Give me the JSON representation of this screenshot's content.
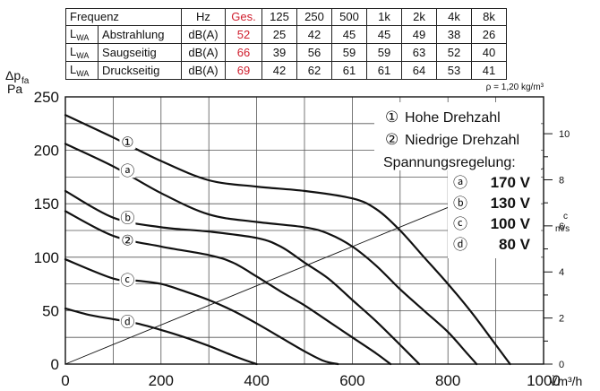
{
  "table": {
    "header": [
      "Frequenz",
      "Hz",
      "Ges.",
      "125",
      "250",
      "500",
      "1k",
      "2k",
      "4k",
      "8k"
    ],
    "rows": [
      {
        "sym": "L",
        "sub": "WA",
        "label": "Abstrahlung",
        "unit": "dB(A)",
        "total": "52",
        "values": [
          "25",
          "42",
          "45",
          "45",
          "49",
          "38",
          "26"
        ]
      },
      {
        "sym": "L",
        "sub": "WA",
        "label": "Saugseitig",
        "unit": "dB(A)",
        "total": "66",
        "values": [
          "39",
          "56",
          "59",
          "59",
          "63",
          "52",
          "40"
        ]
      },
      {
        "sym": "L",
        "sub": "WA",
        "label": "Druckseitig",
        "unit": "dB(A)",
        "total": "69",
        "values": [
          "42",
          "62",
          "61",
          "61",
          "64",
          "53",
          "41"
        ]
      }
    ]
  },
  "density_note": "ρ = 1,20 kg/m³",
  "colors": {
    "accent": "#d0202f",
    "curve": "#111111"
  },
  "chart_data": {
    "type": "line",
    "ylabel_main": "Δp",
    "ylabel_sub": "fa",
    "ylabel_unit": "Pa",
    "xlabel": "V̇m³/h",
    "xlim": [
      0,
      1000
    ],
    "ylim": [
      0,
      250
    ],
    "x_ticks": [
      "0",
      "200",
      "400",
      "600",
      "800",
      "1000"
    ],
    "y_ticks": [
      "0",
      "50",
      "100",
      "150",
      "200",
      "250"
    ],
    "grid": true,
    "right_axis": {
      "label_top": "c",
      "label_unit": "m/s",
      "ticks": [
        "0",
        "2",
        "4",
        "6",
        "8",
        "10"
      ],
      "values": [
        0,
        2,
        4,
        6,
        8,
        10
      ]
    },
    "legend": [
      {
        "symbol": "①",
        "text": "Hohe Drehzahl",
        "color": "#d0202f"
      },
      {
        "symbol": "②",
        "text": "Niedrige Drehzahl",
        "color": "#d0202f"
      }
    ],
    "voltage_title": "Spannungsregelung:",
    "voltages": [
      {
        "symbol": "ⓐ",
        "text": "170 V"
      },
      {
        "symbol": "ⓑ",
        "text": "130 V"
      },
      {
        "symbol": "ⓒ",
        "text": "100 V"
      },
      {
        "symbol": "ⓓ",
        "text": "80 V"
      }
    ],
    "velocity_line": {
      "x": [
        0,
        1000
      ],
      "y": [
        0,
        8.5
      ]
    },
    "series": [
      {
        "label": "①",
        "label_color": "#d0202f",
        "label_x": 130,
        "label_y": 208,
        "x": [
          0,
          100,
          200,
          300,
          400,
          500,
          600,
          650,
          700,
          750,
          800,
          850,
          900,
          930
        ],
        "y": [
          233,
          212,
          190,
          172,
          166,
          162,
          155,
          145,
          125,
          100,
          75,
          48,
          18,
          0
        ]
      },
      {
        "label": "ⓐ",
        "label_color": "#111111",
        "label_x": 130,
        "label_y": 181,
        "x": [
          0,
          100,
          200,
          300,
          400,
          500,
          550,
          600,
          650,
          700,
          750,
          800,
          840,
          860
        ],
        "y": [
          206,
          185,
          160,
          140,
          133,
          128,
          122,
          110,
          92,
          70,
          50,
          30,
          10,
          0
        ]
      },
      {
        "label": "ⓑ",
        "label_color": "#111111",
        "label_x": 130,
        "label_y": 137,
        "x": [
          0,
          100,
          200,
          300,
          400,
          450,
          500,
          550,
          600,
          650,
          700,
          740
        ],
        "y": [
          162,
          137,
          128,
          124,
          118,
          110,
          95,
          80,
          60,
          40,
          18,
          0
        ]
      },
      {
        "label": "②",
        "label_color": "#d0202f",
        "label_x": 130,
        "label_y": 116,
        "x": [
          0,
          100,
          200,
          300,
          350,
          400,
          450,
          500,
          550,
          600,
          650,
          680
        ],
        "y": [
          143,
          120,
          110,
          102,
          95,
          82,
          68,
          55,
          40,
          25,
          10,
          0
        ]
      },
      {
        "label": "ⓒ",
        "label_color": "#111111",
        "label_x": 130,
        "label_y": 79,
        "x": [
          0,
          100,
          150,
          200,
          250,
          300,
          350,
          400,
          450,
          500,
          540,
          570
        ],
        "y": [
          98,
          80,
          78,
          75,
          68,
          60,
          50,
          38,
          25,
          12,
          3,
          0
        ]
      },
      {
        "label": "ⓓ",
        "label_color": "#111111",
        "label_x": 130,
        "label_y": 40,
        "x": [
          0,
          50,
          100,
          150,
          200,
          250,
          300,
          350,
          380,
          400
        ],
        "y": [
          52,
          46,
          42,
          38,
          32,
          25,
          17,
          8,
          3,
          0
        ]
      }
    ]
  }
}
